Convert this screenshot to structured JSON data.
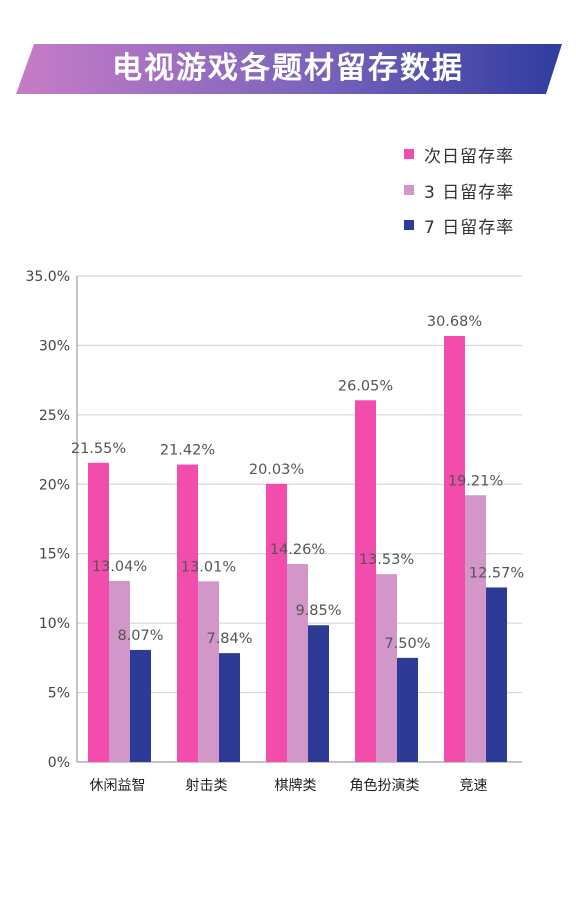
{
  "title": "电视游戏各题材留存数据",
  "chart_data": {
    "type": "bar",
    "title": "电视游戏各题材留存数据",
    "categories": [
      "休闲益智",
      "射击类",
      "棋牌类",
      "角色扮演类",
      "竞速"
    ],
    "series": [
      {
        "name": "次日留存率",
        "color": "#f24dac",
        "values": [
          21.55,
          21.42,
          20.03,
          26.05,
          30.68
        ],
        "labels": [
          "21.55%",
          "21.42%",
          "20.03%",
          "26.05%",
          "30.68%"
        ]
      },
      {
        "name": "3 日留存率",
        "color": "#d396c8",
        "values": [
          13.04,
          13.01,
          14.26,
          13.53,
          19.21
        ],
        "labels": [
          "13.04%",
          "13.01%",
          "14.26%",
          "13.53%",
          "19.21%"
        ]
      },
      {
        "name": "7 日留存率",
        "color": "#2e3b96",
        "values": [
          8.07,
          7.84,
          9.85,
          7.5,
          12.57
        ],
        "labels": [
          "8.07%",
          "7.84%",
          "9.85%",
          "7.50%",
          "12.57%"
        ]
      }
    ],
    "yticks": [
      "0%",
      "5%",
      "10%",
      "15%",
      "20%",
      "25%",
      "30%",
      "35.0%"
    ],
    "ylim": [
      0,
      35
    ],
    "grid": true,
    "legend_position": "top-right",
    "xlabel": "",
    "ylabel": ""
  }
}
